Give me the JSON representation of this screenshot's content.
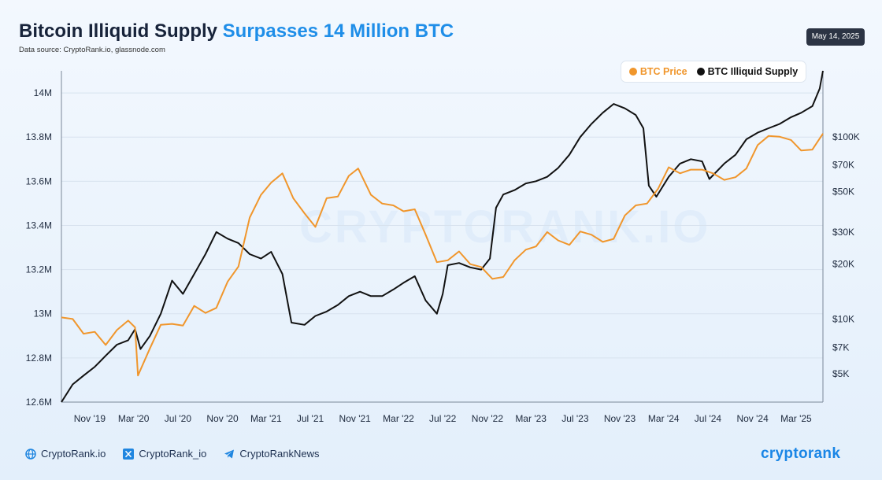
{
  "header": {
    "title_main": "Bitcoin Illiquid Supply",
    "title_highlight": "Surpasses 14 Million BTC",
    "source": "Data source: CryptoRank.io, glassnode.com",
    "date": "May 14, 2025"
  },
  "legend": {
    "price_label": "BTC Price",
    "supply_label": "BTC Illiquid Supply"
  },
  "watermark": "CRYPTORANK.IO",
  "footer": {
    "site": "CryptoRank.io",
    "x_handle": "CryptoRank_io",
    "telegram": "CryptoRankNews",
    "brand": "cryptorank"
  },
  "colors": {
    "price": "#f0962c",
    "supply": "#111111",
    "accent": "#1f8ee8",
    "badge": "#2c3444"
  },
  "icons": {
    "site": "globe-icon",
    "x": "x-logo-icon",
    "telegram": "telegram-icon"
  },
  "chart_data": {
    "type": "line",
    "x_ticks": [
      "Nov '19",
      "Mar '20",
      "Jul '20",
      "Nov '20",
      "Mar '21",
      "Jul '21",
      "Nov '21",
      "Mar '22",
      "Jul '22",
      "Nov '22",
      "Mar '23",
      "Jul '23",
      "Nov '23",
      "Mar '24",
      "Jul '24",
      "Nov '24",
      "Mar '25"
    ],
    "x_range": [
      "2019-08-15",
      "2025-05-14"
    ],
    "y_left": {
      "label": "",
      "range": [
        12600000,
        14100000
      ],
      "ticks": [
        12600000,
        12800000,
        13000000,
        13200000,
        13400000,
        13600000,
        13800000,
        14000000
      ],
      "tick_labels": [
        "12.6M",
        "12.8M",
        "13M",
        "13.2M",
        "13.4M",
        "13.6M",
        "13.8M",
        "14M"
      ]
    },
    "y_right": {
      "label": "",
      "scale": "log",
      "range": [
        3500,
        230000
      ],
      "ticks": [
        5000,
        7000,
        10000,
        20000,
        30000,
        50000,
        70000,
        100000
      ],
      "tick_labels": [
        "$5K",
        "$7K",
        "$10K",
        "$20K",
        "$30K",
        "$50K",
        "$70K",
        "$100K"
      ]
    },
    "grid": true,
    "legend_position": "top-right",
    "series": [
      {
        "name": "BTC Illiquid Supply",
        "axis": "left",
        "color": "#111111",
        "points": [
          [
            "2019-08-15",
            12600000
          ],
          [
            "2019-09-15",
            12680000
          ],
          [
            "2019-10-15",
            12720000
          ],
          [
            "2019-11-15",
            12760000
          ],
          [
            "2019-12-15",
            12810000
          ],
          [
            "2020-01-15",
            12860000
          ],
          [
            "2020-02-15",
            12880000
          ],
          [
            "2020-03-05",
            12930000
          ],
          [
            "2020-03-20",
            12840000
          ],
          [
            "2020-04-15",
            12900000
          ],
          [
            "2020-05-15",
            13000000
          ],
          [
            "2020-06-15",
            13150000
          ],
          [
            "2020-07-15",
            13090000
          ],
          [
            "2020-08-15",
            13180000
          ],
          [
            "2020-09-15",
            13270000
          ],
          [
            "2020-10-15",
            13370000
          ],
          [
            "2020-11-15",
            13340000
          ],
          [
            "2020-12-15",
            13320000
          ],
          [
            "2021-01-15",
            13270000
          ],
          [
            "2021-02-15",
            13250000
          ],
          [
            "2021-03-15",
            13280000
          ],
          [
            "2021-04-15",
            13180000
          ],
          [
            "2021-05-10",
            12960000
          ],
          [
            "2021-06-15",
            12950000
          ],
          [
            "2021-07-15",
            12990000
          ],
          [
            "2021-08-15",
            13010000
          ],
          [
            "2021-09-15",
            13040000
          ],
          [
            "2021-10-15",
            13080000
          ],
          [
            "2021-11-15",
            13100000
          ],
          [
            "2021-12-15",
            13080000
          ],
          [
            "2022-01-15",
            13080000
          ],
          [
            "2022-02-15",
            13110000
          ],
          [
            "2022-03-15",
            13140000
          ],
          [
            "2022-04-15",
            13170000
          ],
          [
            "2022-05-15",
            13060000
          ],
          [
            "2022-06-15",
            13000000
          ],
          [
            "2022-07-01",
            13090000
          ],
          [
            "2022-07-15",
            13220000
          ],
          [
            "2022-08-15",
            13230000
          ],
          [
            "2022-09-15",
            13210000
          ],
          [
            "2022-10-15",
            13200000
          ],
          [
            "2022-11-08",
            13250000
          ],
          [
            "2022-11-25",
            13480000
          ],
          [
            "2022-12-15",
            13540000
          ],
          [
            "2023-01-15",
            13560000
          ],
          [
            "2023-02-15",
            13590000
          ],
          [
            "2023-03-15",
            13600000
          ],
          [
            "2023-04-15",
            13620000
          ],
          [
            "2023-05-15",
            13660000
          ],
          [
            "2023-06-15",
            13720000
          ],
          [
            "2023-07-15",
            13800000
          ],
          [
            "2023-08-15",
            13860000
          ],
          [
            "2023-09-15",
            13910000
          ],
          [
            "2023-10-15",
            13950000
          ],
          [
            "2023-11-15",
            13930000
          ],
          [
            "2023-12-15",
            13900000
          ],
          [
            "2024-01-05",
            13840000
          ],
          [
            "2024-01-20",
            13580000
          ],
          [
            "2024-02-10",
            13530000
          ],
          [
            "2024-03-15",
            13620000
          ],
          [
            "2024-04-15",
            13680000
          ],
          [
            "2024-05-15",
            13700000
          ],
          [
            "2024-06-15",
            13690000
          ],
          [
            "2024-07-05",
            13610000
          ],
          [
            "2024-08-15",
            13680000
          ],
          [
            "2024-09-15",
            13720000
          ],
          [
            "2024-10-15",
            13790000
          ],
          [
            "2024-11-15",
            13820000
          ],
          [
            "2024-12-15",
            13840000
          ],
          [
            "2025-01-15",
            13860000
          ],
          [
            "2025-02-15",
            13890000
          ],
          [
            "2025-03-15",
            13910000
          ],
          [
            "2025-04-15",
            13940000
          ],
          [
            "2025-05-05",
            14020000
          ],
          [
            "2025-05-14",
            14100000
          ]
        ]
      },
      {
        "name": "BTC Price",
        "axis": "right",
        "color": "#f0962c",
        "points": [
          [
            "2019-08-15",
            10200
          ],
          [
            "2019-09-15",
            10000
          ],
          [
            "2019-10-15",
            8300
          ],
          [
            "2019-11-15",
            8500
          ],
          [
            "2019-12-15",
            7200
          ],
          [
            "2020-01-15",
            8700
          ],
          [
            "2020-02-15",
            9800
          ],
          [
            "2020-03-05",
            9000
          ],
          [
            "2020-03-13",
            4900
          ],
          [
            "2020-04-15",
            6900
          ],
          [
            "2020-05-15",
            9300
          ],
          [
            "2020-06-15",
            9400
          ],
          [
            "2020-07-15",
            9200
          ],
          [
            "2020-08-15",
            11800
          ],
          [
            "2020-09-15",
            10800
          ],
          [
            "2020-10-15",
            11500
          ],
          [
            "2020-11-15",
            16000
          ],
          [
            "2020-12-15",
            19400
          ],
          [
            "2021-01-15",
            36000
          ],
          [
            "2021-02-15",
            48000
          ],
          [
            "2021-03-15",
            56000
          ],
          [
            "2021-04-15",
            63000
          ],
          [
            "2021-05-15",
            46000
          ],
          [
            "2021-06-15",
            38000
          ],
          [
            "2021-07-15",
            32000
          ],
          [
            "2021-08-15",
            46000
          ],
          [
            "2021-09-15",
            47000
          ],
          [
            "2021-10-15",
            61000
          ],
          [
            "2021-11-10",
            67000
          ],
          [
            "2021-12-15",
            48000
          ],
          [
            "2022-01-15",
            43000
          ],
          [
            "2022-02-15",
            42000
          ],
          [
            "2022-03-15",
            39000
          ],
          [
            "2022-04-15",
            40000
          ],
          [
            "2022-05-15",
            29000
          ],
          [
            "2022-06-15",
            20500
          ],
          [
            "2022-07-15",
            21000
          ],
          [
            "2022-08-15",
            23500
          ],
          [
            "2022-09-15",
            20000
          ],
          [
            "2022-10-15",
            19300
          ],
          [
            "2022-11-15",
            16600
          ],
          [
            "2022-12-15",
            17000
          ],
          [
            "2023-01-15",
            21000
          ],
          [
            "2023-02-15",
            24000
          ],
          [
            "2023-03-15",
            25000
          ],
          [
            "2023-04-15",
            30000
          ],
          [
            "2023-05-15",
            27000
          ],
          [
            "2023-06-15",
            25500
          ],
          [
            "2023-07-15",
            30200
          ],
          [
            "2023-08-15",
            29000
          ],
          [
            "2023-09-15",
            26500
          ],
          [
            "2023-10-15",
            27500
          ],
          [
            "2023-11-15",
            37000
          ],
          [
            "2023-12-15",
            42000
          ],
          [
            "2024-01-15",
            43000
          ],
          [
            "2024-02-15",
            52000
          ],
          [
            "2024-03-15",
            68000
          ],
          [
            "2024-04-15",
            63000
          ],
          [
            "2024-05-15",
            66000
          ],
          [
            "2024-06-15",
            66000
          ],
          [
            "2024-07-15",
            63000
          ],
          [
            "2024-08-15",
            58000
          ],
          [
            "2024-09-15",
            60000
          ],
          [
            "2024-10-15",
            67000
          ],
          [
            "2024-11-15",
            90000
          ],
          [
            "2024-12-15",
            101000
          ],
          [
            "2025-01-15",
            100000
          ],
          [
            "2025-02-15",
            96000
          ],
          [
            "2025-03-15",
            84000
          ],
          [
            "2025-04-15",
            85000
          ],
          [
            "2025-05-14",
            104000
          ]
        ]
      }
    ]
  }
}
